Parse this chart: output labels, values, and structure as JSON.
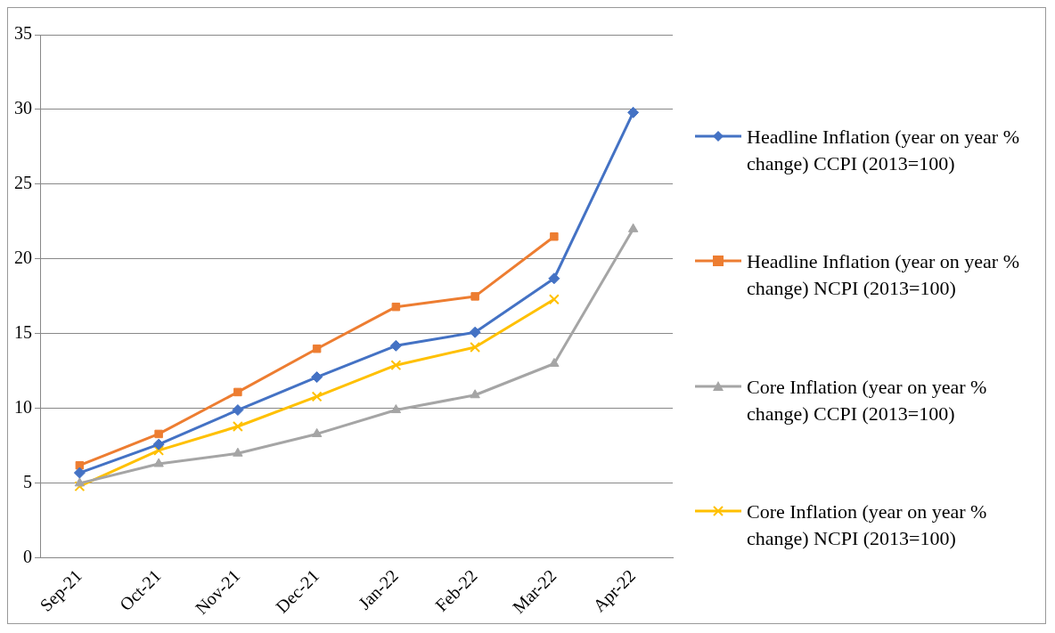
{
  "chart_data": {
    "type": "line",
    "categories": [
      "Sep-21",
      "Oct-21",
      "Nov-21",
      "Dec-21",
      "Jan-22",
      "Feb-22",
      "Mar-22",
      "Apr-22"
    ],
    "ylim": [
      0,
      35
    ],
    "yticks": [
      0,
      5,
      10,
      15,
      20,
      25,
      30,
      35
    ],
    "grid": "y",
    "legend": "right",
    "series": [
      {
        "name": "Headline Inflation (year on year % change) CCPI (2013=100)",
        "color": "#4472c4",
        "marker": "diamond",
        "values": [
          5.7,
          7.6,
          9.9,
          12.1,
          14.2,
          15.1,
          18.7,
          29.8
        ]
      },
      {
        "name": "Headline Inflation (year on year % change) NCPI (2013=100)",
        "color": "#ed7d31",
        "marker": "square",
        "values": [
          6.2,
          8.3,
          11.1,
          14.0,
          16.8,
          17.5,
          21.5,
          null
        ]
      },
      {
        "name": "Core Inflation (year on year % change) CCPI (2013=100)",
        "color": "#a5a5a5",
        "marker": "triangle",
        "values": [
          5.0,
          6.3,
          7.0,
          8.3,
          9.9,
          10.9,
          13.0,
          22.0
        ]
      },
      {
        "name": "Core Inflation (year on year % change) NCPI (2013=100)",
        "color": "#ffc000",
        "marker": "cross",
        "values": [
          4.8,
          7.2,
          8.8,
          10.8,
          12.9,
          14.1,
          17.3,
          null
        ]
      }
    ]
  }
}
